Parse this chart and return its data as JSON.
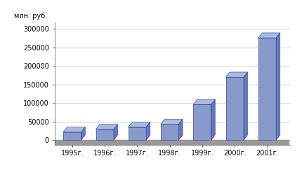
{
  "categories": [
    "1995г.",
    "1996г.",
    "1997г.",
    "1998г.",
    "1999г.",
    "2000г.",
    "2001г."
  ],
  "values": [
    22000,
    29000,
    35000,
    43000,
    96000,
    170000,
    276000
  ],
  "bar_face_color": "#8899cc",
  "bar_edge_color": "#4455aa",
  "bar_top_color": "#aabbdd",
  "bar_side_color": "#6677bb",
  "ylabel": "млн. руб.",
  "ylim": [
    0,
    300000
  ],
  "yticks": [
    0,
    50000,
    100000,
    150000,
    200000,
    250000,
    300000
  ],
  "background_color": "#ffffff",
  "plot_bg_color": "#ffffff",
  "floor_color": "#aaaaaa",
  "grid_color": "#bbbbbb",
  "bar_width": 0.55,
  "ddx": 0.12,
  "ddy_ratio": 0.045
}
